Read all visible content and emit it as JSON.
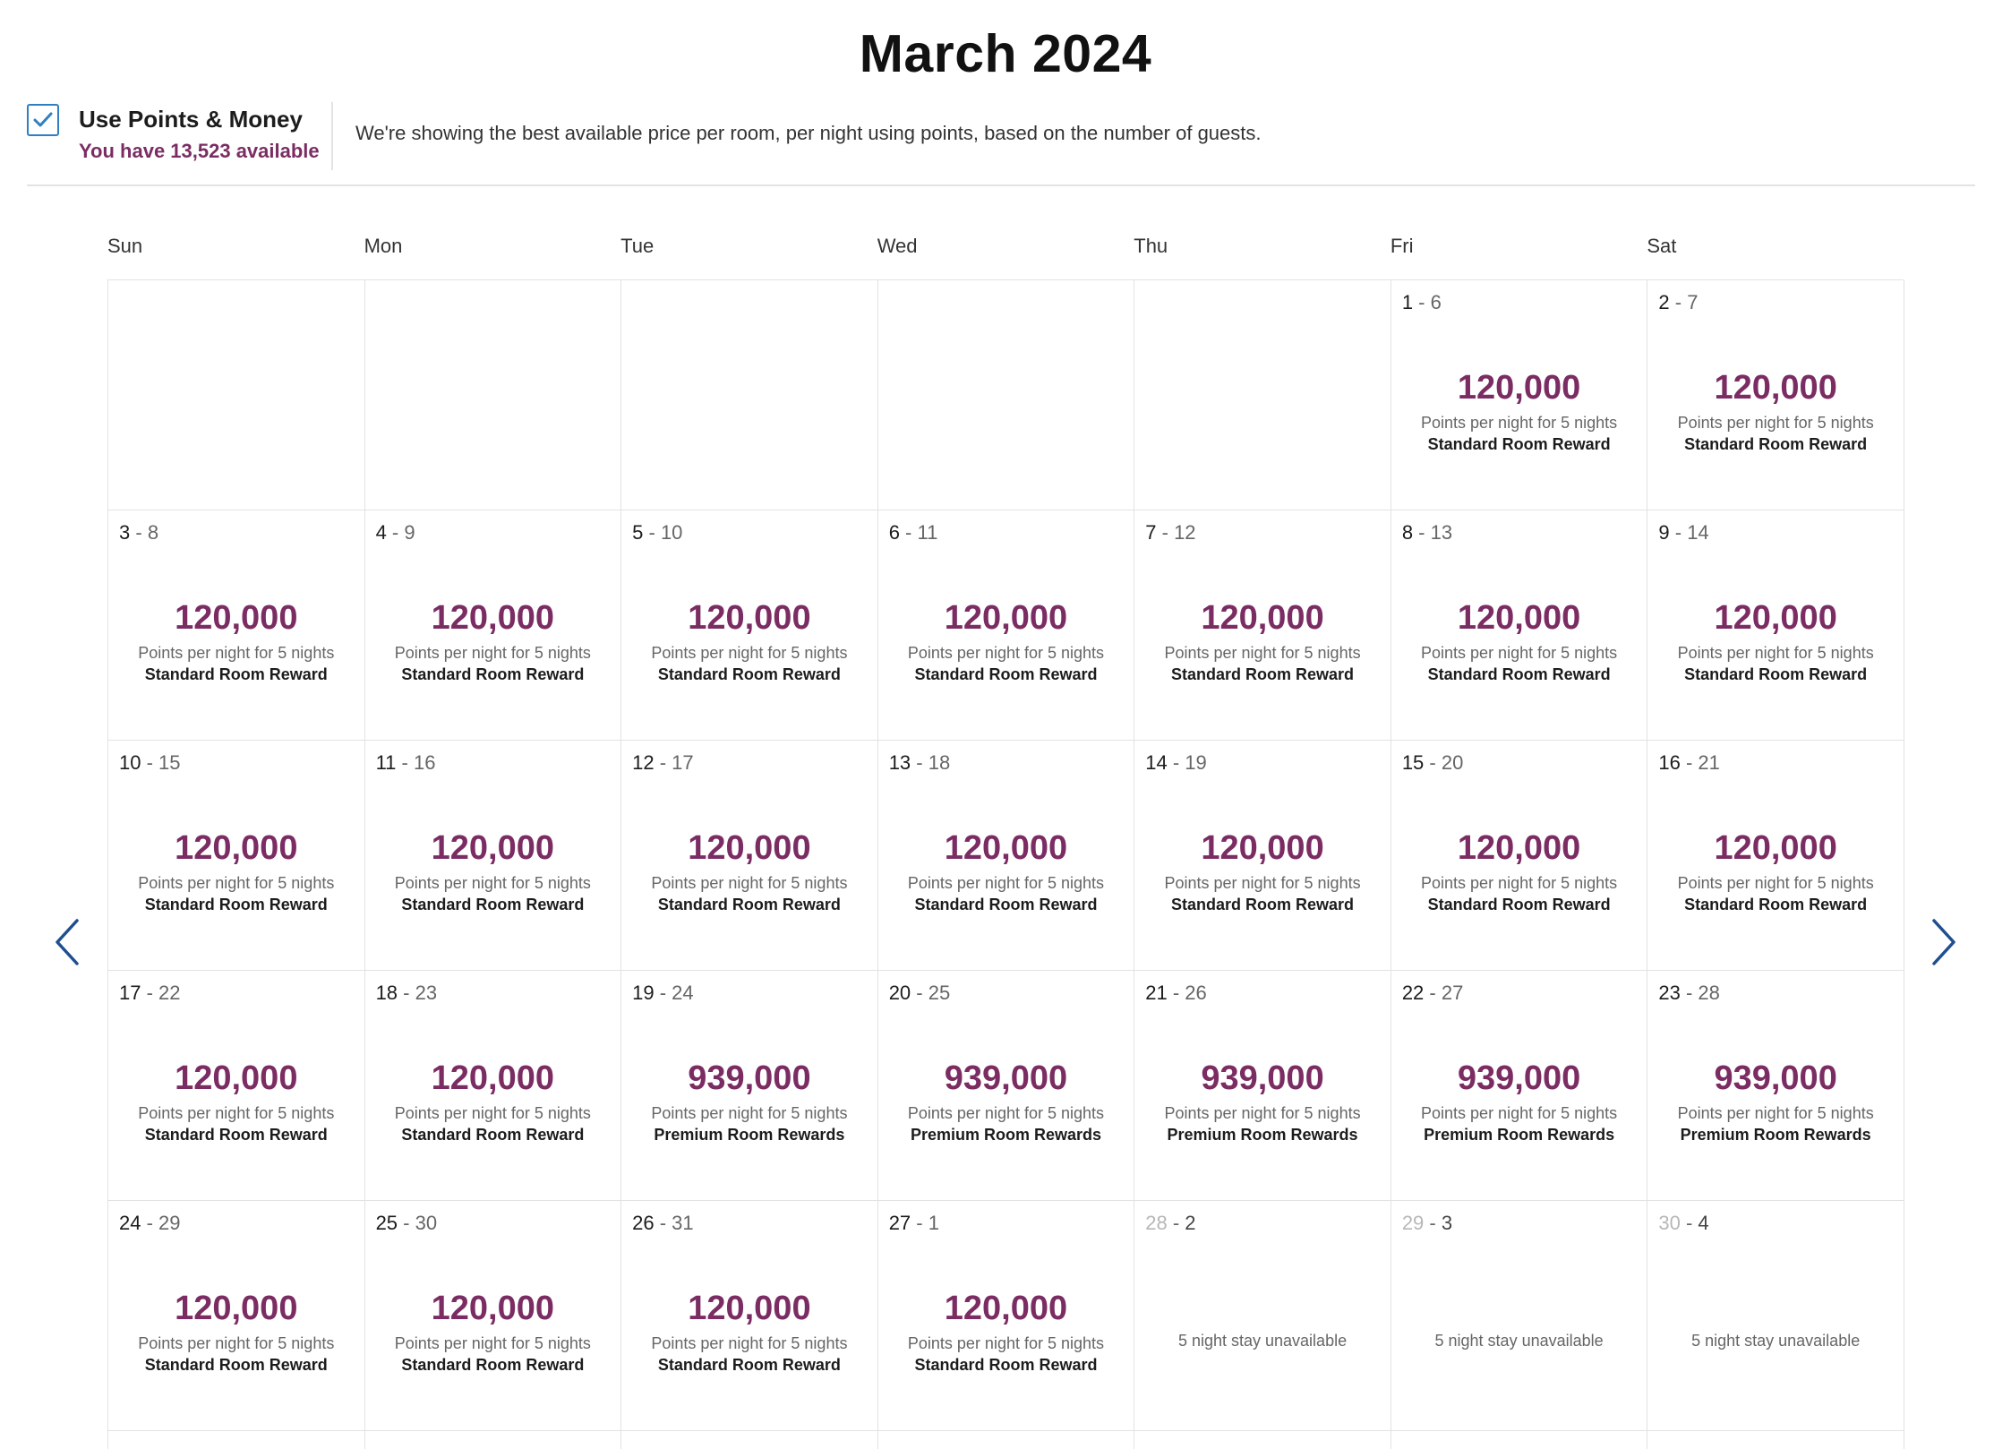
{
  "header": {
    "title": "March 2024"
  },
  "points_toggle": {
    "label": "Use Points & Money",
    "available": "You have 13,523 available",
    "checked": true,
    "info": "We're showing the best available price per room, per night using points, based on the number of guests."
  },
  "calendar": {
    "weekdays": [
      "Sun",
      "Mon",
      "Tue",
      "Wed",
      "Thu",
      "Fri",
      "Sat"
    ],
    "cells": [
      {
        "empty": true
      },
      {
        "empty": true
      },
      {
        "empty": true
      },
      {
        "empty": true
      },
      {
        "empty": true
      },
      {
        "start": "1",
        "end": "6",
        "points": "120,000",
        "per_night": "Points per night for 5 nights",
        "reward": "Standard Room Reward"
      },
      {
        "start": "2",
        "end": "7",
        "points": "120,000",
        "per_night": "Points per night for 5 nights",
        "reward": "Standard Room Reward"
      },
      {
        "start": "3",
        "end": "8",
        "points": "120,000",
        "per_night": "Points per night for 5 nights",
        "reward": "Standard Room Reward"
      },
      {
        "start": "4",
        "end": "9",
        "points": "120,000",
        "per_night": "Points per night for 5 nights",
        "reward": "Standard Room Reward"
      },
      {
        "start": "5",
        "end": "10",
        "points": "120,000",
        "per_night": "Points per night for 5 nights",
        "reward": "Standard Room Reward"
      },
      {
        "start": "6",
        "end": "11",
        "points": "120,000",
        "per_night": "Points per night for 5 nights",
        "reward": "Standard Room Reward"
      },
      {
        "start": "7",
        "end": "12",
        "points": "120,000",
        "per_night": "Points per night for 5 nights",
        "reward": "Standard Room Reward"
      },
      {
        "start": "8",
        "end": "13",
        "points": "120,000",
        "per_night": "Points per night for 5 nights",
        "reward": "Standard Room Reward"
      },
      {
        "start": "9",
        "end": "14",
        "points": "120,000",
        "per_night": "Points per night for 5 nights",
        "reward": "Standard Room Reward"
      },
      {
        "start": "10",
        "end": "15",
        "points": "120,000",
        "per_night": "Points per night for 5 nights",
        "reward": "Standard Room Reward"
      },
      {
        "start": "11",
        "end": "16",
        "points": "120,000",
        "per_night": "Points per night for 5 nights",
        "reward": "Standard Room Reward"
      },
      {
        "start": "12",
        "end": "17",
        "points": "120,000",
        "per_night": "Points per night for 5 nights",
        "reward": "Standard Room Reward"
      },
      {
        "start": "13",
        "end": "18",
        "points": "120,000",
        "per_night": "Points per night for 5 nights",
        "reward": "Standard Room Reward"
      },
      {
        "start": "14",
        "end": "19",
        "points": "120,000",
        "per_night": "Points per night for 5 nights",
        "reward": "Standard Room Reward"
      },
      {
        "start": "15",
        "end": "20",
        "points": "120,000",
        "per_night": "Points per night for 5 nights",
        "reward": "Standard Room Reward"
      },
      {
        "start": "16",
        "end": "21",
        "points": "120,000",
        "per_night": "Points per night for 5 nights",
        "reward": "Standard Room Reward"
      },
      {
        "start": "17",
        "end": "22",
        "points": "120,000",
        "per_night": "Points per night for 5 nights",
        "reward": "Standard Room Reward"
      },
      {
        "start": "18",
        "end": "23",
        "points": "120,000",
        "per_night": "Points per night for 5 nights",
        "reward": "Standard Room Reward"
      },
      {
        "start": "19",
        "end": "24",
        "points": "939,000",
        "per_night": "Points per night for 5 nights",
        "reward": "Premium Room Rewards"
      },
      {
        "start": "20",
        "end": "25",
        "points": "939,000",
        "per_night": "Points per night for 5 nights",
        "reward": "Premium Room Rewards"
      },
      {
        "start": "21",
        "end": "26",
        "points": "939,000",
        "per_night": "Points per night for 5 nights",
        "reward": "Premium Room Rewards"
      },
      {
        "start": "22",
        "end": "27",
        "points": "939,000",
        "per_night": "Points per night for 5 nights",
        "reward": "Premium Room Rewards"
      },
      {
        "start": "23",
        "end": "28",
        "points": "939,000",
        "per_night": "Points per night for 5 nights",
        "reward": "Premium Room Rewards"
      },
      {
        "start": "24",
        "end": "29",
        "points": "120,000",
        "per_night": "Points per night for 5 nights",
        "reward": "Standard Room Reward"
      },
      {
        "start": "25",
        "end": "30",
        "points": "120,000",
        "per_night": "Points per night for 5 nights",
        "reward": "Standard Room Reward"
      },
      {
        "start": "26",
        "end": "31",
        "points": "120,000",
        "per_night": "Points per night for 5 nights",
        "reward": "Standard Room Reward"
      },
      {
        "start": "27",
        "end": "1",
        "points": "120,000",
        "per_night": "Points per night for 5 nights",
        "reward": "Standard Room Reward"
      },
      {
        "start": "28",
        "end": "2",
        "unavailable": "5 night stay unavailable"
      },
      {
        "start": "29",
        "end": "3",
        "unavailable": "5 night stay unavailable"
      },
      {
        "start": "30",
        "end": "4",
        "unavailable": "5 night stay unavailable"
      }
    ]
  },
  "nav": {
    "prev_icon": "chevron-left-icon",
    "next_icon": "chevron-right-icon"
  },
  "colors": {
    "accent": "#7b2d63",
    "checkbox": "#2f7fc1",
    "border": "#e2e2e2"
  }
}
